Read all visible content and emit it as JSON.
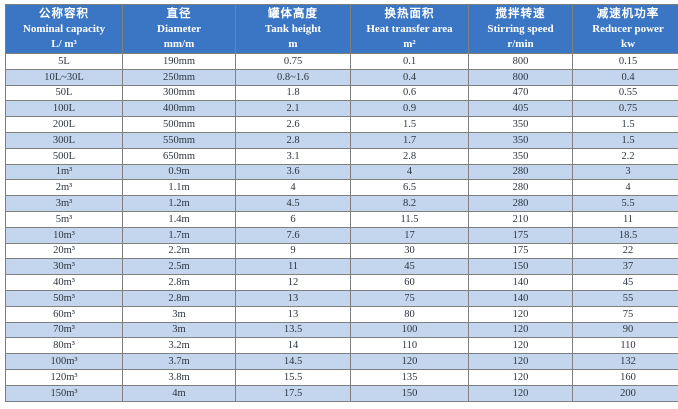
{
  "table": {
    "columns": [
      {
        "zh": "公称容积",
        "en": "Nominal capacity",
        "unit": "L/ m³"
      },
      {
        "zh": "直径",
        "en": "Diameter",
        "unit": "mm/m"
      },
      {
        "zh": "罐体高度",
        "en": "Tank height",
        "unit": "m"
      },
      {
        "zh": "换热面积",
        "en": "Heat transfer area",
        "unit": "m²"
      },
      {
        "zh": "搅拌转速",
        "en": "Stirring speed",
        "unit": "r/min"
      },
      {
        "zh": "减速机功率",
        "en": "Reducer power",
        "unit": "kw"
      }
    ],
    "rows": [
      [
        "5L",
        "190mm",
        "0.75",
        "0.1",
        "800",
        "0.15"
      ],
      [
        "10L~30L",
        "250mm",
        "0.8~1.6",
        "0.4",
        "800",
        "0.4"
      ],
      [
        "50L",
        "300mm",
        "1.8",
        "0.6",
        "470",
        "0.55"
      ],
      [
        "100L",
        "400mm",
        "2.1",
        "0.9",
        "405",
        "0.75"
      ],
      [
        "200L",
        "500mm",
        "2.6",
        "1.5",
        "350",
        "1.5"
      ],
      [
        "300L",
        "550mm",
        "2.8",
        "1.7",
        "350",
        "1.5"
      ],
      [
        "500L",
        "650mm",
        "3.1",
        "2.8",
        "350",
        "2.2"
      ],
      [
        "1m³",
        "0.9m",
        "3.6",
        "4",
        "280",
        "3"
      ],
      [
        "2m³",
        "1.1m",
        "4",
        "6.5",
        "280",
        "4"
      ],
      [
        "3m³",
        "1.2m",
        "4.5",
        "8.2",
        "280",
        "5.5"
      ],
      [
        "5m³",
        "1.4m",
        "6",
        "11.5",
        "210",
        "11"
      ],
      [
        "10m³",
        "1.7m",
        "7.6",
        "17",
        "175",
        "18.5"
      ],
      [
        "20m³",
        "2.2m",
        "9",
        "30",
        "175",
        "22"
      ],
      [
        "30m³",
        "2.5m",
        "11",
        "45",
        "150",
        "37"
      ],
      [
        "40m³",
        "2.8m",
        "12",
        "60",
        "140",
        "45"
      ],
      [
        "50m³",
        "2.8m",
        "13",
        "75",
        "140",
        "55"
      ],
      [
        "60m³",
        "3m",
        "13",
        "80",
        "120",
        "75"
      ],
      [
        "70m³",
        "3m",
        "13.5",
        "100",
        "120",
        "90"
      ],
      [
        "80m³",
        "3.2m",
        "14",
        "110",
        "120",
        "110"
      ],
      [
        "100m³",
        "3.7m",
        "14.5",
        "120",
        "120",
        "132"
      ],
      [
        "120m³",
        "3.8m",
        "15.5",
        "135",
        "120",
        "160"
      ],
      [
        "150m³",
        "4m",
        "17.5",
        "150",
        "120",
        "200"
      ]
    ],
    "colors": {
      "header_bg": "#3b76c4",
      "header_text": "#ffffff",
      "row_alt_bg": "#c3d6ee",
      "row_bg": "#ffffff",
      "border": "#7f7f7f",
      "body_text": "#2e3540"
    }
  }
}
